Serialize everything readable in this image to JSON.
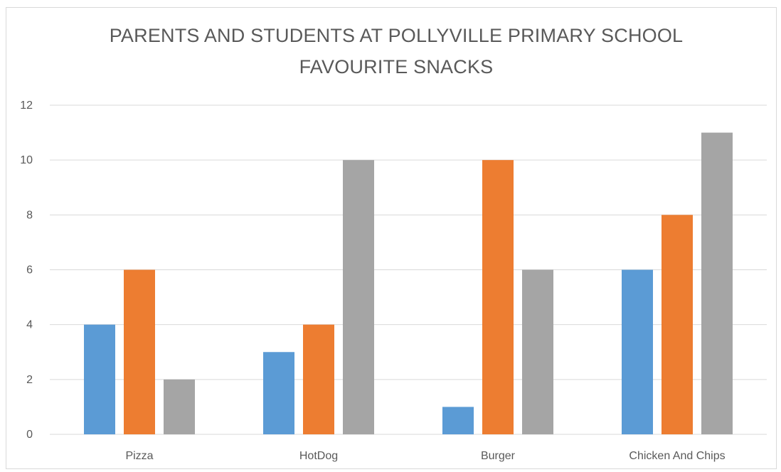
{
  "chart_data": {
    "type": "bar",
    "title_lines": [
      "PARENTS AND STUDENTS AT POLLYVILLE PRIMARY SCHOOL",
      "FAVOURITE SNACKS"
    ],
    "categories": [
      "Pizza",
      "HotDog",
      "Burger",
      "Chicken  And Chips"
    ],
    "series": [
      {
        "color": "#5b9bd5",
        "values": [
          4,
          3,
          1,
          6
        ]
      },
      {
        "color": "#ed7d31",
        "values": [
          6,
          4,
          10,
          8
        ]
      },
      {
        "color": "#a5a5a5",
        "values": [
          2,
          10,
          6,
          11
        ]
      }
    ],
    "ylim": [
      0,
      12
    ],
    "yticks": [
      0,
      2,
      4,
      6,
      8,
      10,
      12
    ],
    "grid": true,
    "legend": "none",
    "gridline_color": "#d9d9d9"
  }
}
